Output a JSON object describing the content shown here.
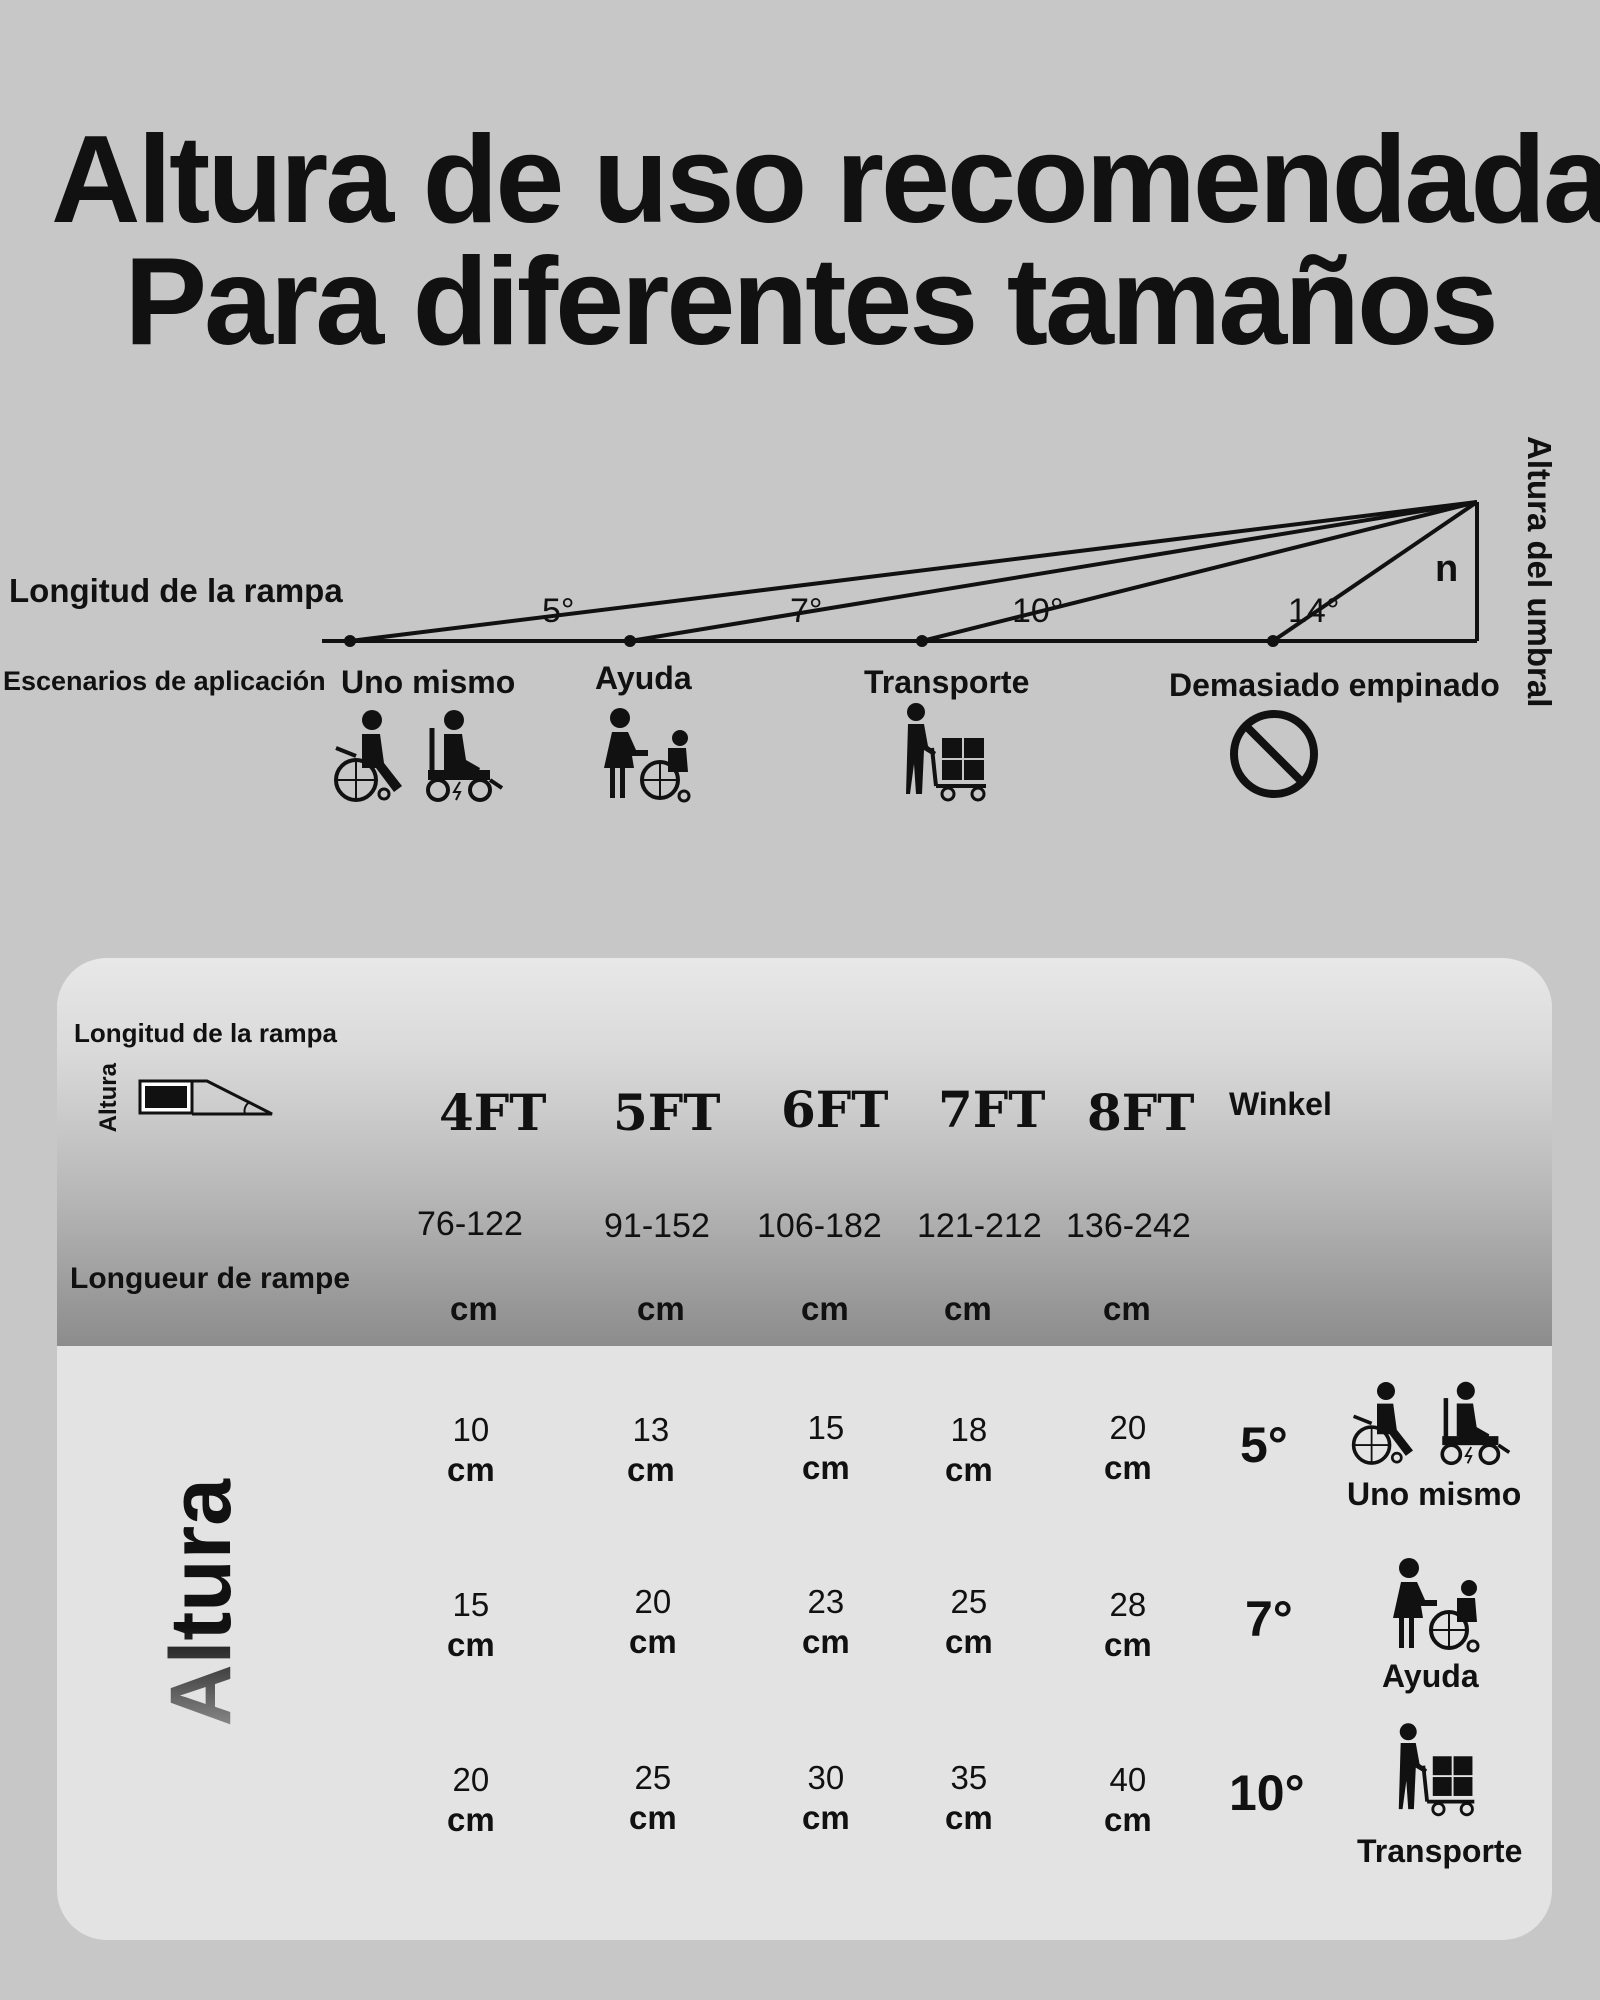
{
  "title": {
    "line1": "Altura de uso recomendada",
    "line2": "Para diferentes tamaños"
  },
  "diagram": {
    "ramp_length_label": "Longitud de la rampa",
    "threshold_height_label": "Altura del umbral",
    "scenarios_label": "Escenarios de aplicación",
    "height_symbol": "n",
    "angles": [
      "5°",
      "7°",
      "10°",
      "14°"
    ],
    "scenarios": [
      {
        "label": "Uno mismo",
        "icons": [
          "manual-wheelchair-icon",
          "electric-wheelchair-icon"
        ]
      },
      {
        "label": "Ayuda",
        "icons": [
          "caregiver-pushing-wheelchair-icon"
        ]
      },
      {
        "label": "Transporte",
        "icons": [
          "person-with-cart-icon"
        ]
      },
      {
        "label": "Demasiado empinado",
        "icons": [
          "prohibited-icon"
        ]
      }
    ]
  },
  "table": {
    "header_ramp_length": "Longitud de la rampa",
    "header_height_small": "Altura",
    "header_longueur": "Longueur de rampe",
    "angle_header": "Winkel",
    "side_label": "Altura",
    "columns": [
      {
        "size": "4FT",
        "range": "76-122",
        "unit": "cm"
      },
      {
        "size": "5FT",
        "range": "91-152",
        "unit": "cm"
      },
      {
        "size": "6FT",
        "range": "106-182",
        "unit": "cm"
      },
      {
        "size": "7FT",
        "range": "121-212",
        "unit": "cm"
      },
      {
        "size": "8FT",
        "range": "136-242",
        "unit": "cm"
      }
    ],
    "rows": [
      {
        "angle": "5°",
        "label": "Uno mismo",
        "values": [
          "10",
          "13",
          "15",
          "18",
          "20"
        ],
        "unit": "cm"
      },
      {
        "angle": "7°",
        "label": "Ayuda",
        "values": [
          "15",
          "20",
          "23",
          "25",
          "28"
        ],
        "unit": "cm"
      },
      {
        "angle": "10°",
        "label": "Transporte",
        "values": [
          "20",
          "25",
          "30",
          "35",
          "40"
        ],
        "unit": "cm"
      }
    ]
  }
}
